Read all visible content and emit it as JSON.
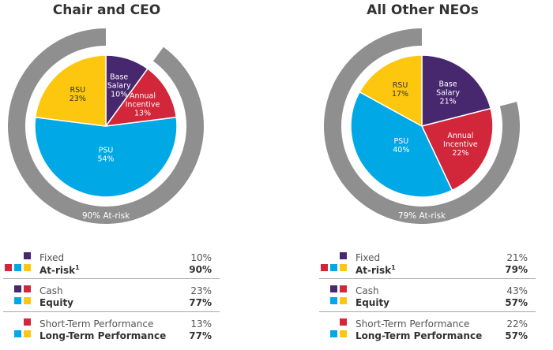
{
  "colors": {
    "purple": "#47286e",
    "red": "#d2263a",
    "yellow": "#fcc70e",
    "blue": "#00a9e6",
    "ring": "#8f8f8f"
  },
  "chart_data": [
    {
      "type": "pie",
      "title": "Chair and CEO",
      "slices": [
        {
          "label": "Base\nSalary",
          "value": 10,
          "value_label": "10%",
          "color": "#47286e"
        },
        {
          "label": "Annual\nIncentive",
          "value": 13,
          "value_label": "13%",
          "color": "#d2263a"
        },
        {
          "label": "PSU",
          "value": 54,
          "value_label": "54%",
          "color": "#00a9e6"
        },
        {
          "label": "RSU",
          "value": 23,
          "value_label": "23%",
          "color": "#fcc70e"
        }
      ],
      "at_risk_percent": 90,
      "ring_label": "90% At-risk"
    },
    {
      "type": "pie",
      "title": "All Other NEOs",
      "slices": [
        {
          "label": "Base\nSalary",
          "value": 21,
          "value_label": "21%",
          "color": "#47286e"
        },
        {
          "label": "Annual\nIncentive",
          "value": 22,
          "value_label": "22%",
          "color": "#d2263a"
        },
        {
          "label": "PSU",
          "value": 40,
          "value_label": "40%",
          "color": "#00a9e6"
        },
        {
          "label": "RSU",
          "value": 17,
          "value_label": "17%",
          "color": "#fcc70e"
        }
      ],
      "at_risk_percent": 79,
      "ring_label": "79% At-risk"
    }
  ],
  "legend": {
    "left": {
      "rows": [
        {
          "line1": "Fixed",
          "val1": "10%",
          "line2": "At-risk",
          "line2_sup": "1",
          "val2": "90%"
        },
        {
          "line1": "Cash",
          "val1": "23%",
          "line2": "Equity",
          "val2": "77%"
        },
        {
          "line1": "Short-Term Performance",
          "val1": "13%",
          "line2": "Long-Term Performance",
          "val2": "77%"
        }
      ]
    },
    "right": {
      "rows": [
        {
          "line1": "Fixed",
          "val1": "21%",
          "line2": "At-risk",
          "line2_sup": "1",
          "val2": "79%"
        },
        {
          "line1": "Cash",
          "val1": "43%",
          "line2": "Equity",
          "val2": "57%"
        },
        {
          "line1": "Short-Term Performance",
          "val1": "22%",
          "line2": "Long-Term Performance",
          "val2": "57%"
        }
      ]
    }
  }
}
